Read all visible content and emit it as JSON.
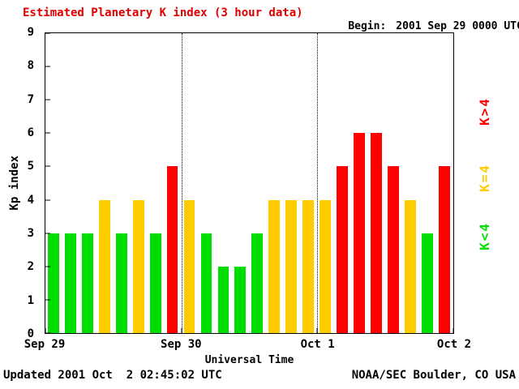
{
  "header": {
    "title": "Estimated Planetary K index (3 hour data)",
    "title_color": "#e00000",
    "begin_label": "Begin:",
    "begin_value": "2001 Sep 29 0000 UTC"
  },
  "axes": {
    "y_label": "Kp index",
    "x_label": "Universal Time",
    "y_ticks": [
      0,
      1,
      2,
      3,
      4,
      5,
      6,
      7,
      8,
      9
    ],
    "x_ticks": [
      "Sep 29",
      "Sep 30",
      "Oct 1",
      "Oct 2"
    ]
  },
  "legend": [
    {
      "label": "K>4",
      "color": "#ff0000"
    },
    {
      "label": "K=4",
      "color": "#ffcc00"
    },
    {
      "label": "K<4",
      "color": "#00dd00"
    }
  ],
  "footer": {
    "updated": "Updated 2001 Oct  2 02:45:02 UTC",
    "source": "NOAA/SEC Boulder, CO USA"
  },
  "chart_data": {
    "type": "bar",
    "title": "Estimated Planetary K index (3 hour data)",
    "xlabel": "Universal Time",
    "ylabel": "Kp index",
    "ylim": [
      0,
      9
    ],
    "bars_per_day": 8,
    "interval_hours": 3,
    "days": [
      "Sep 29",
      "Sep 30",
      "Oct 1"
    ],
    "x_axis_day_labels": [
      "Sep 29",
      "Sep 30",
      "Oct 1",
      "Oct 2"
    ],
    "values": [
      3,
      3,
      3,
      4,
      3,
      4,
      3,
      5,
      4,
      3,
      2,
      2,
      3,
      4,
      4,
      4,
      4,
      5,
      6,
      6,
      5,
      4,
      3,
      5
    ],
    "colors_rule": {
      "lt4": "#00dd00",
      "eq4": "#ffcc00",
      "gt4": "#ff0000"
    },
    "grid": "dotted vertical lines at day boundaries",
    "legend_position": "right, rotated"
  }
}
